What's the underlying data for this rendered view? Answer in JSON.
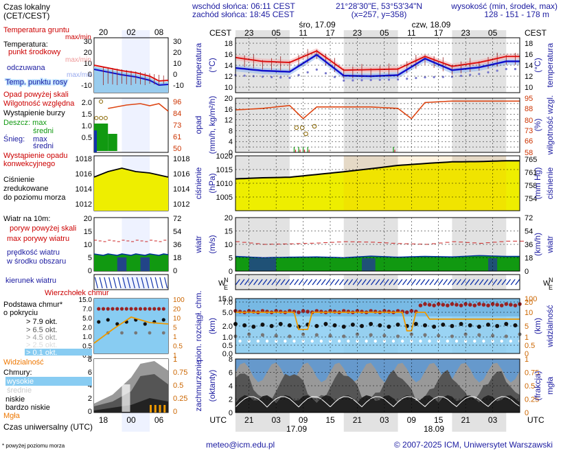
{
  "legend": {
    "time_local": "Czas lokalny",
    "time_local_tz": "(CET/CEST)",
    "soil_temp": "Temperatura gruntu",
    "soil_sub": "max/min",
    "temperature": "Temperatura:",
    "temp_mid": "punkt środkowy",
    "temp_maxmin": "max/min",
    "perceived": "odczuwana",
    "perceived_sub": "max/min",
    "dewpoint": "Temp. punktu rosy",
    "rain_above": "Opad powyżej skali",
    "humidity": "Wilgotność względna",
    "storm": "Wystąpienie burzy",
    "rain": "Deszcz: max",
    "rain_mid": "średni",
    "snow": "Śnieg:",
    "snow_max": "max",
    "snow_mid": "średni",
    "conv1": "Wystąpienie opadu",
    "conv2": "konwekcyjnego",
    "pressure1": "Ciśnienie",
    "pressure2": "zredukowane",
    "pressure3": "do poziomu morza",
    "wind": "Wiatr na 10m:",
    "gust_above": "poryw powyżej skali",
    "gust_max": "max porywy wiatru",
    "wind_mean": "prędkość wiatru",
    "wind_mean2": "w środku obszaru",
    "wind_dir": "kierunek wiatru",
    "cloud_top": "Wierzchołek chmur",
    "cloud_base": "Podstawa chmur*",
    "cloud_cover": "o pokryciu",
    "okt79": "> 7.9 okt.",
    "okt65": "> 6.5 okt.",
    "okt45": "> 4.5 okt.",
    "okt25": "> 2.5 okt.",
    "okt01": "> 0.1 okt.",
    "visibility": "Widzialność",
    "clouds": "Chmury:",
    "cl_high": "wysokie",
    "cl_mid": "średnie",
    "cl_low": "niskie",
    "cl_vlow": "bardzo niskie",
    "fog": "Mgła",
    "utc_label": "Czas uniwersalny (UTC)",
    "footnote": "* powyżej poziomu morza"
  },
  "header": {
    "sunrise": "wschód słońca: 06:11 CEST",
    "sunset": "zachód słońca: 18:45 CEST",
    "coords": "21°28'30\"E, 53°53'34\"N",
    "grid": "(x=257, y=358)",
    "height_title": "wysokość (min, środek, max)",
    "height_values": "128 - 151 - 178 m"
  },
  "axis": {
    "cest": "CEST",
    "utc": "UTC",
    "day1": "śro, 17.09",
    "day2": "czw, 18.09",
    "day1_bottom": "17.09",
    "day2_bottom": "18.09",
    "legend_top_ticks": [
      "20",
      "02",
      "08"
    ],
    "legend_bottom_ticks": [
      "18",
      "00",
      "06"
    ],
    "top_ticks": [
      "23",
      "05",
      "11",
      "17",
      "23",
      "05",
      "11",
      "17",
      "23",
      "05"
    ],
    "bottom_ticks": [
      "21",
      "03",
      "09",
      "15",
      "21",
      "03",
      "09",
      "15",
      "21",
      "03"
    ]
  },
  "panel_labels": {
    "temp_left": "temperatura",
    "temp_left_unit": "(°C)",
    "temp_right": "temperatura",
    "temp_right_unit": "(°C)",
    "rain_left": "opad",
    "rain_left_unit": "(mm/h, kg/m²/h)",
    "rain_right": "wilgotność wzgl.",
    "rain_right_unit": "(%)",
    "press_left": "ciśnienie",
    "press_left_unit": "(hPa)",
    "press_right": "ciśnienie",
    "press_right_unit": "(mm Hg)",
    "wind_left": "wiatr",
    "wind_left_unit": "(m/s)",
    "wind_right": "wiatr",
    "wind_right_unit": "(km/h)",
    "cloud_left": "pion. rozciągł. chm.",
    "cloud_left_unit": "(km)",
    "cloud_right": "widzialność",
    "cloud_right_unit": "(km)",
    "cover_left": "zachmurzenie",
    "cover_left_unit": "(oktanty)",
    "cover_right": "mgła",
    "cover_right_unit": "(frakcja)"
  },
  "footer": {
    "email": "meteo@icm.edu.pl",
    "copyright": "© 2007-2025 ICM, Uniwersytet Warszawski"
  },
  "colors": {
    "temp_red": "#dd1111",
    "temp_blue": "#1111cc",
    "dew_purple": "#7777cc",
    "humidity": "#dd4411",
    "pressure_fill": "#eeee00",
    "wind_green": "#119911",
    "orange_vis": "#ee9900",
    "night_shade": "#d8d8d8",
    "day_blue": "#eef2ff"
  },
  "chart_data": [
    {
      "type": "line",
      "name": "temperatura",
      "ylim": [
        9,
        19
      ],
      "y2lim": [
        9,
        19
      ],
      "yticks": [
        10,
        12,
        14,
        16,
        18
      ],
      "x_hours_utc": [
        0,
        6,
        12,
        18,
        24,
        30,
        36,
        42,
        48,
        54,
        60
      ],
      "series": [
        {
          "values": [
            15.4,
            14.7,
            14.5,
            16.6,
            13.1,
            13.2,
            13.3,
            15.6,
            13.8,
            14.5,
            15.6
          ]
        },
        {
          "values": [
            13.5,
            13.0,
            12.8,
            15.9,
            12.1,
            12.0,
            12.2,
            15.2,
            13.1,
            13.6,
            14.7
          ]
        },
        {
          "values": [
            12.2,
            11.9,
            11.7,
            13.2,
            11.2,
            11.3,
            11.4,
            11.8,
            11.9,
            12.4,
            13.3
          ]
        }
      ]
    },
    {
      "type": "line",
      "name": "opad",
      "ylim": [
        0,
        20
      ],
      "yticks": [
        0,
        2,
        4,
        6,
        8,
        10,
        12,
        14,
        16,
        18,
        20
      ],
      "y2lim": [
        58,
        95
      ],
      "y2ticks": [
        58,
        66,
        73,
        80,
        88,
        95
      ],
      "x_hours_utc": [
        0,
        6,
        12,
        15,
        18,
        24,
        30,
        36,
        39,
        42,
        48,
        54,
        60
      ],
      "series": [
        {
          "values": [
            87,
            88,
            90,
            81,
            89,
            89,
            89,
            88,
            81,
            92,
            93,
            93,
            93
          ]
        }
      ]
    },
    {
      "type": "area",
      "name": "ciśnienie",
      "ylim": [
        1000,
        1020
      ],
      "yticks": [
        1005,
        1010,
        1015,
        1020
      ],
      "y2ticks": [
        754,
        758,
        761,
        765
      ],
      "x_hours_utc": [
        0,
        6,
        12,
        18,
        24,
        30,
        36,
        42,
        48,
        54,
        60
      ],
      "series": [
        {
          "values": [
            1011.6,
            1012.0,
            1012.2,
            1013.2,
            1014.2,
            1015.3,
            1016.5,
            1017.2,
            1017.8,
            1017.9,
            1018.2
          ]
        }
      ]
    },
    {
      "type": "line",
      "name": "wiatr",
      "ylim": [
        0,
        20
      ],
      "yticks": [
        0,
        5,
        10,
        15,
        20
      ],
      "y2ticks": [
        0,
        18,
        36,
        54,
        72
      ],
      "x_hours_utc": [
        0,
        6,
        12,
        18,
        24,
        30,
        36,
        42,
        48,
        54,
        60
      ],
      "series": [
        {
          "values": [
            5.5,
            5.0,
            5.2,
            5.3,
            5.0,
            5.6,
            5.2,
            5.5,
            5.3,
            5.8,
            5.5
          ]
        },
        {
          "values": [
            11.0,
            10.0,
            10.2,
            10.5,
            11.0,
            10.8,
            10.3,
            10.0,
            11.0,
            10.4,
            11.2
          ]
        }
      ]
    },
    {
      "type": "scatter",
      "name": "chmury",
      "ylim": [
        0,
        15
      ],
      "yticks": [
        0,
        0.5,
        1.0,
        2.0,
        5.0,
        7.0,
        15.0
      ],
      "y2ticks": [
        0,
        0.5,
        1,
        5,
        10,
        20,
        100
      ]
    },
    {
      "type": "area",
      "name": "zachmurzenie",
      "ylim": [
        0,
        8
      ],
      "yticks": [
        0,
        2,
        4,
        6,
        8
      ],
      "y2ticks": [
        0,
        0.25,
        0.5,
        0.75,
        1
      ]
    }
  ]
}
